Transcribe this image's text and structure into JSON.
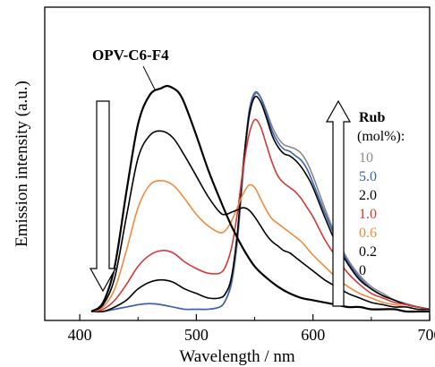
{
  "chart_data": {
    "type": "line",
    "xlabel": "Wavelength / nm",
    "ylabel": "Emission intensity (a.u.)",
    "xlim": [
      370,
      700
    ],
    "ylim": [
      0,
      1.0
    ],
    "x_ticks": [
      400,
      500,
      600,
      700
    ],
    "x_tick_labels": [
      "400",
      "500",
      "600",
      "700"
    ],
    "annotation": "OPV-C6-F4",
    "legend_title": "Rub",
    "legend_unit": "(mol%):",
    "arrow_down_label": "",
    "series": [
      {
        "name": "10",
        "color": "#8a8a8a",
        "x": [
          410,
          420,
          430,
          440,
          450,
          460,
          470,
          480,
          490,
          500,
          510,
          520,
          525,
          530,
          535,
          540,
          545,
          550,
          555,
          560,
          565,
          570,
          575,
          580,
          585,
          590,
          595,
          600,
          610,
          620,
          630,
          640,
          650,
          660,
          670,
          680,
          690,
          700
        ],
        "y": [
          0.0,
          0.0,
          0.01,
          0.02,
          0.03,
          0.035,
          0.03,
          0.02,
          0.01,
          0.01,
          0.01,
          0.02,
          0.05,
          0.12,
          0.3,
          0.6,
          0.85,
          0.96,
          0.95,
          0.89,
          0.82,
          0.77,
          0.74,
          0.73,
          0.72,
          0.7,
          0.66,
          0.6,
          0.46,
          0.33,
          0.23,
          0.16,
          0.11,
          0.08,
          0.05,
          0.035,
          0.02,
          0.01
        ]
      },
      {
        "name": "5.0",
        "color": "#3a63b0",
        "x": [
          410,
          420,
          430,
          440,
          450,
          460,
          470,
          480,
          490,
          500,
          510,
          520,
          525,
          530,
          535,
          540,
          545,
          550,
          555,
          560,
          565,
          570,
          575,
          580,
          585,
          590,
          595,
          600,
          610,
          620,
          630,
          640,
          650,
          660,
          670,
          680,
          690,
          700
        ],
        "y": [
          0.0,
          0.0,
          0.01,
          0.02,
          0.03,
          0.035,
          0.03,
          0.02,
          0.01,
          0.01,
          0.01,
          0.02,
          0.05,
          0.13,
          0.32,
          0.63,
          0.88,
          0.97,
          0.95,
          0.88,
          0.8,
          0.75,
          0.72,
          0.71,
          0.69,
          0.67,
          0.63,
          0.57,
          0.44,
          0.32,
          0.22,
          0.15,
          0.1,
          0.07,
          0.05,
          0.03,
          0.02,
          0.01
        ]
      },
      {
        "name": "2.0",
        "color": "#000000",
        "x": [
          410,
          420,
          430,
          440,
          450,
          460,
          470,
          480,
          490,
          500,
          510,
          520,
          525,
          530,
          535,
          540,
          545,
          550,
          555,
          560,
          565,
          570,
          575,
          580,
          585,
          590,
          595,
          600,
          610,
          620,
          630,
          640,
          650,
          660,
          670,
          680,
          690,
          700
        ],
        "y": [
          0.0,
          0.0,
          0.02,
          0.05,
          0.1,
          0.13,
          0.14,
          0.13,
          0.1,
          0.08,
          0.06,
          0.06,
          0.08,
          0.15,
          0.34,
          0.64,
          0.86,
          0.95,
          0.93,
          0.86,
          0.78,
          0.73,
          0.7,
          0.69,
          0.67,
          0.64,
          0.6,
          0.55,
          0.42,
          0.3,
          0.21,
          0.14,
          0.1,
          0.07,
          0.05,
          0.03,
          0.02,
          0.01
        ]
      },
      {
        "name": "1.0",
        "color": "#d03a3a",
        "x": [
          410,
          420,
          430,
          440,
          450,
          460,
          470,
          480,
          490,
          500,
          510,
          520,
          525,
          530,
          535,
          540,
          545,
          550,
          555,
          560,
          565,
          570,
          575,
          580,
          585,
          590,
          595,
          600,
          610,
          620,
          630,
          640,
          650,
          660,
          670,
          680,
          690,
          700
        ],
        "y": [
          0.0,
          0.01,
          0.05,
          0.12,
          0.2,
          0.25,
          0.27,
          0.26,
          0.22,
          0.19,
          0.17,
          0.17,
          0.2,
          0.28,
          0.43,
          0.63,
          0.78,
          0.85,
          0.82,
          0.74,
          0.66,
          0.6,
          0.57,
          0.55,
          0.53,
          0.5,
          0.46,
          0.42,
          0.32,
          0.24,
          0.17,
          0.12,
          0.08,
          0.06,
          0.04,
          0.03,
          0.02,
          0.01
        ]
      },
      {
        "name": "0.6",
        "color": "#ef8b3a",
        "x": [
          410,
          420,
          430,
          440,
          450,
          460,
          470,
          480,
          490,
          500,
          510,
          520,
          525,
          530,
          535,
          540,
          545,
          550,
          555,
          560,
          565,
          570,
          575,
          580,
          585,
          590,
          595,
          600,
          610,
          620,
          630,
          640,
          650,
          660,
          670,
          680,
          690,
          700
        ],
        "y": [
          0.0,
          0.02,
          0.1,
          0.27,
          0.46,
          0.56,
          0.58,
          0.56,
          0.5,
          0.43,
          0.38,
          0.35,
          0.36,
          0.4,
          0.46,
          0.52,
          0.56,
          0.55,
          0.5,
          0.45,
          0.41,
          0.39,
          0.37,
          0.35,
          0.33,
          0.31,
          0.28,
          0.25,
          0.2,
          0.15,
          0.11,
          0.08,
          0.06,
          0.04,
          0.03,
          0.02,
          0.01,
          0.01
        ]
      },
      {
        "name": "0.2",
        "color": "#000000",
        "x": [
          410,
          420,
          430,
          440,
          450,
          460,
          470,
          480,
          490,
          500,
          510,
          520,
          525,
          530,
          535,
          540,
          545,
          550,
          555,
          560,
          565,
          570,
          575,
          580,
          585,
          590,
          595,
          600,
          610,
          620,
          630,
          640,
          650,
          660,
          670,
          680,
          690,
          700
        ],
        "y": [
          0.0,
          0.03,
          0.15,
          0.42,
          0.68,
          0.78,
          0.8,
          0.77,
          0.69,
          0.6,
          0.51,
          0.44,
          0.43,
          0.44,
          0.45,
          0.46,
          0.45,
          0.42,
          0.38,
          0.34,
          0.31,
          0.29,
          0.27,
          0.26,
          0.24,
          0.22,
          0.2,
          0.18,
          0.14,
          0.11,
          0.08,
          0.06,
          0.04,
          0.03,
          0.02,
          0.02,
          0.01,
          0.01
        ]
      },
      {
        "name": "0",
        "color": "#000000",
        "x": [
          410,
          420,
          430,
          440,
          450,
          460,
          470,
          475,
          480,
          485,
          490,
          500,
          510,
          520,
          530,
          540,
          550,
          560,
          570,
          580,
          590,
          600,
          610,
          620,
          630,
          640,
          650,
          660,
          670,
          680,
          690,
          700
        ],
        "y": [
          0.0,
          0.04,
          0.2,
          0.53,
          0.83,
          0.96,
          0.99,
          1.0,
          0.99,
          0.97,
          0.92,
          0.78,
          0.63,
          0.5,
          0.38,
          0.28,
          0.2,
          0.15,
          0.11,
          0.08,
          0.06,
          0.05,
          0.04,
          0.03,
          0.02,
          0.02,
          0.01,
          0.01,
          0.01,
          0.0,
          0.0,
          0.0
        ]
      }
    ],
    "legend_entries": [
      {
        "label": "10",
        "color": "#8a8a8a"
      },
      {
        "label": "5.0",
        "color": "#3a63b0"
      },
      {
        "label": "2.0",
        "color": "#000000"
      },
      {
        "label": "1.0",
        "color": "#d03a3a"
      },
      {
        "label": "0.6",
        "color": "#ef8b3a"
      },
      {
        "label": "0.2",
        "color": "#000000"
      },
      {
        "label": "0",
        "color": "#000000"
      }
    ]
  }
}
